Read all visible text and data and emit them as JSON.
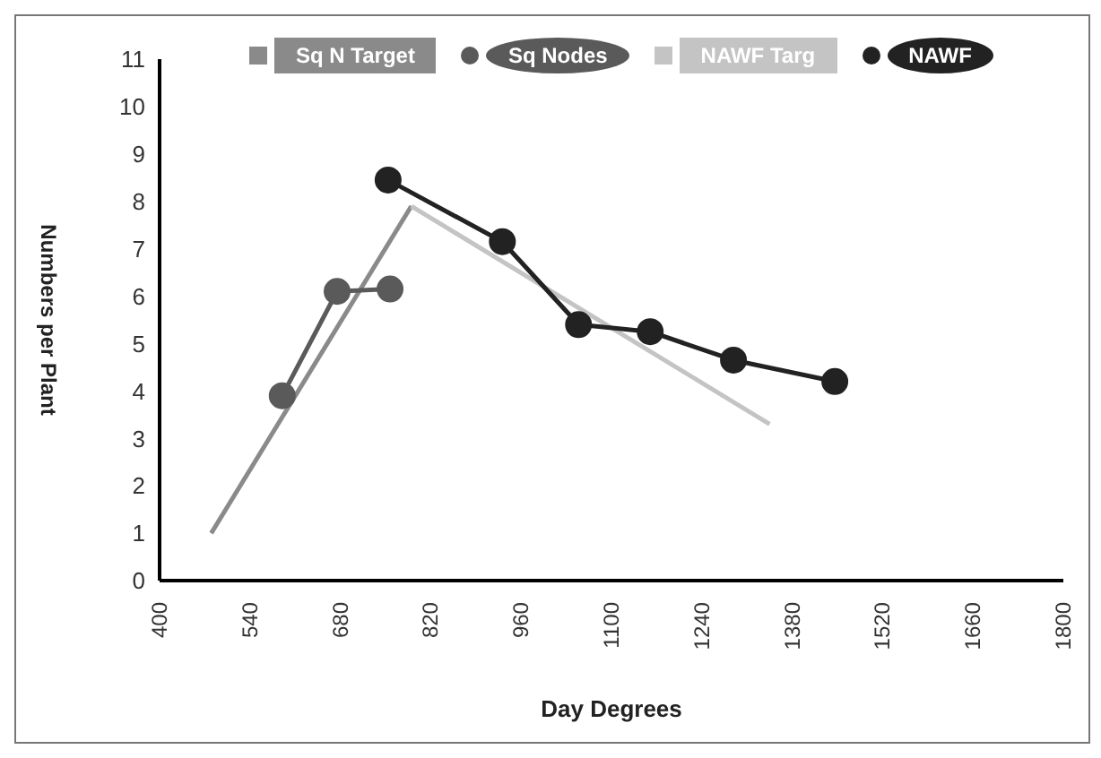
{
  "chart_data": {
    "type": "line",
    "xlabel": "Day Degrees",
    "ylabel": "Numbers per Plant",
    "xlim": [
      400,
      1800
    ],
    "xticks": [
      400,
      540,
      680,
      820,
      960,
      1100,
      1240,
      1380,
      1520,
      1660,
      1800
    ],
    "ylim": [
      0,
      11
    ],
    "yticks": [
      0,
      1,
      2,
      3,
      4,
      5,
      6,
      7,
      8,
      9,
      10,
      11
    ],
    "legend": "top",
    "line_style": "solid",
    "series": [
      {
        "name": "Sq N Target",
        "color": "#8a8a8a",
        "marker": "none",
        "x": [
          480,
          790
        ],
        "values": [
          1,
          7.9
        ]
      },
      {
        "name": "Sq Nodes",
        "color": "#5a5a5a",
        "marker": "circle",
        "x": [
          590,
          675,
          757
        ],
        "values": [
          3.9,
          6.1,
          6.15
        ]
      },
      {
        "name": "NAWF Targ",
        "color": "#c4c4c4",
        "marker": "none",
        "x": [
          790,
          1345
        ],
        "values": [
          7.9,
          3.3
        ]
      },
      {
        "name": "NAWF",
        "color": "#222222",
        "marker": "circle",
        "x": [
          754,
          931,
          1049,
          1160,
          1289,
          1446
        ],
        "values": [
          8.45,
          7.15,
          5.4,
          5.25,
          4.65,
          4.2
        ]
      }
    ]
  }
}
